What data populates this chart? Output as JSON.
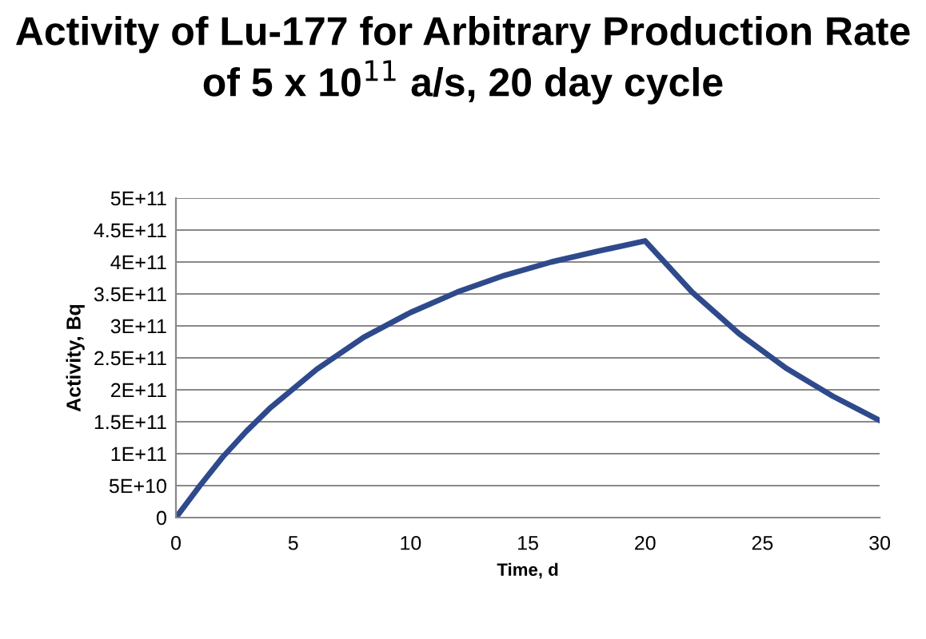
{
  "chart_data": {
    "type": "line",
    "title": "Activity of Lu-177 for Arbitrary Production Rate of 5 x 10$^{11}$ a/s, 20 day cycle",
    "xlabel": "Time, d",
    "ylabel": "Activity, Bq",
    "series": [
      {
        "color": "#2e4a8c",
        "x": [
          0,
          1,
          2,
          3,
          4,
          6,
          8,
          10,
          12,
          14,
          16,
          18,
          20,
          22,
          24,
          26,
          28,
          30
        ],
        "values": [
          0,
          49000000000.0,
          95000000000.0,
          135000000000.0,
          171000000000.0,
          232000000000.0,
          282000000000.0,
          321000000000.0,
          353000000000.0,
          379000000000.0,
          400000000000.0,
          417000000000.0,
          433000000000.0,
          353000000000.0,
          288000000000.0,
          234000000000.0,
          190000000000.0,
          152000000000.0
        ]
      }
    ],
    "xlim": [
      0,
      30
    ],
    "xticks": [
      0,
      5,
      10,
      15,
      20,
      25,
      30
    ],
    "ylim": [
      0,
      500000000000.0
    ],
    "yticks": [
      {
        "value": 0,
        "label": "0"
      },
      {
        "value": 50000000000.0,
        "label": "5E+10"
      },
      {
        "value": 100000000000.0,
        "label": "1E+11"
      },
      {
        "value": 150000000000.0,
        "label": "1.5E+11"
      },
      {
        "value": 200000000000.0,
        "label": "2E+11"
      },
      {
        "value": 250000000000.0,
        "label": "2.5E+11"
      },
      {
        "value": 300000000000.0,
        "label": "3E+11"
      },
      {
        "value": 350000000000.0,
        "label": "3.5E+11"
      },
      {
        "value": 400000000000.0,
        "label": "4E+11"
      },
      {
        "value": 450000000000.0,
        "label": "4.5E+11"
      },
      {
        "value": 500000000000.0,
        "label": "5E+11"
      }
    ],
    "grid": "y",
    "legend": false,
    "marker": "none",
    "line_style": "solid"
  }
}
